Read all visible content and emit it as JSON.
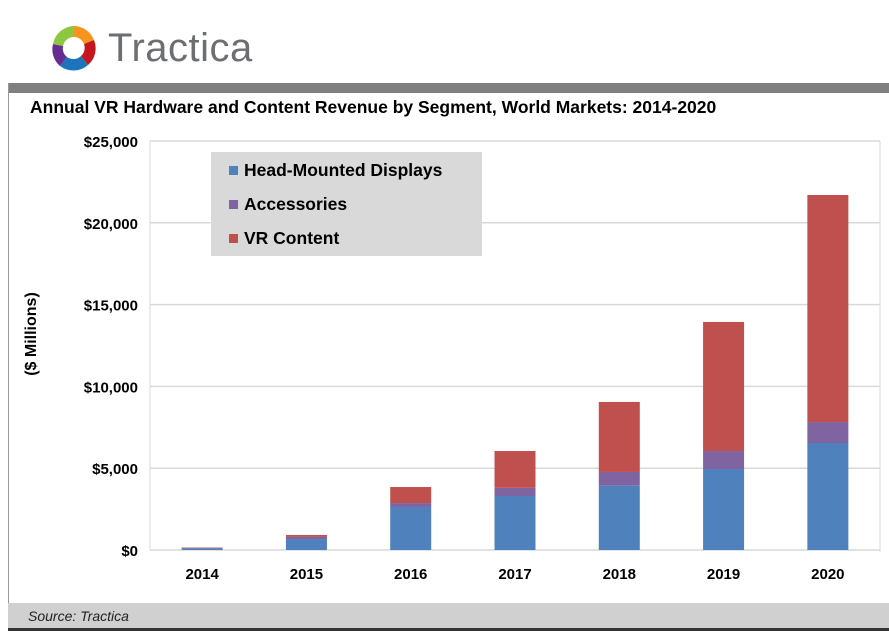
{
  "brand": {
    "name": "Tractica"
  },
  "footer": {
    "source": "Source: Tractica"
  },
  "chart_data": {
    "type": "bar",
    "stacked": true,
    "title": "Annual VR Hardware and Content Revenue by Segment, World Markets: 2014-2020",
    "xlabel": "",
    "ylabel": "($ Millions)",
    "ylim": [
      0,
      25000
    ],
    "yticks": [
      0,
      5000,
      10000,
      15000,
      20000,
      25000
    ],
    "ytick_labels": [
      "$0",
      "$5,000",
      "$10,000",
      "$15,000",
      "$20,000",
      "$25,000"
    ],
    "grid": true,
    "legend_position": "top-left",
    "categories": [
      "2014",
      "2015",
      "2016",
      "2017",
      "2018",
      "2019",
      "2020"
    ],
    "series": [
      {
        "name": "Head-Mounted Displays",
        "color": "#4f81bd",
        "values": [
          100,
          670,
          2630,
          3300,
          3930,
          4950,
          6540
        ]
      },
      {
        "name": "Accessories",
        "color": "#8064a2",
        "values": [
          20,
          130,
          240,
          500,
          840,
          1100,
          1280
        ]
      },
      {
        "name": "VR Content",
        "color": "#c0504d",
        "values": [
          30,
          120,
          980,
          2250,
          4280,
          7890,
          13880
        ]
      }
    ]
  }
}
